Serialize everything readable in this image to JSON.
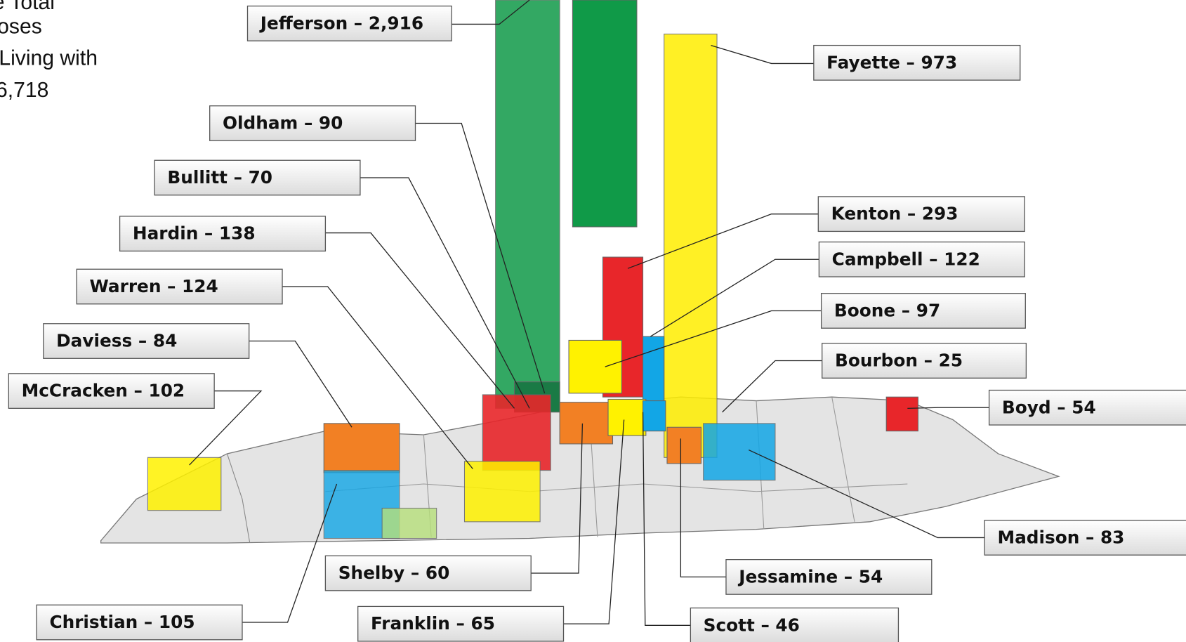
{
  "headnote": [
    "e Total",
    "oses",
    "Living with",
    "6,718"
  ],
  "labels": [
    {
      "text": "Jefferson – 2,916"
    },
    {
      "text": "Fayette – 973"
    },
    {
      "text": "Oldham – 90"
    },
    {
      "text": "Bullitt – 70"
    },
    {
      "text": "Hardin – 138"
    },
    {
      "text": "Kenton – 293"
    },
    {
      "text": "Warren – 124"
    },
    {
      "text": "Campbell – 122"
    },
    {
      "text": "Boone – 97"
    },
    {
      "text": "Daviess – 84"
    },
    {
      "text": "Bourbon – 25"
    },
    {
      "text": "McCracken – 102"
    },
    {
      "text": "Boyd – 54"
    },
    {
      "text": "Madison – 83"
    },
    {
      "text": "Shelby – 60"
    },
    {
      "text": "Jessamine – 54"
    },
    {
      "text": "Christian – 105"
    },
    {
      "text": "Franklin – 65"
    },
    {
      "text": "Scott – 46"
    }
  ]
}
